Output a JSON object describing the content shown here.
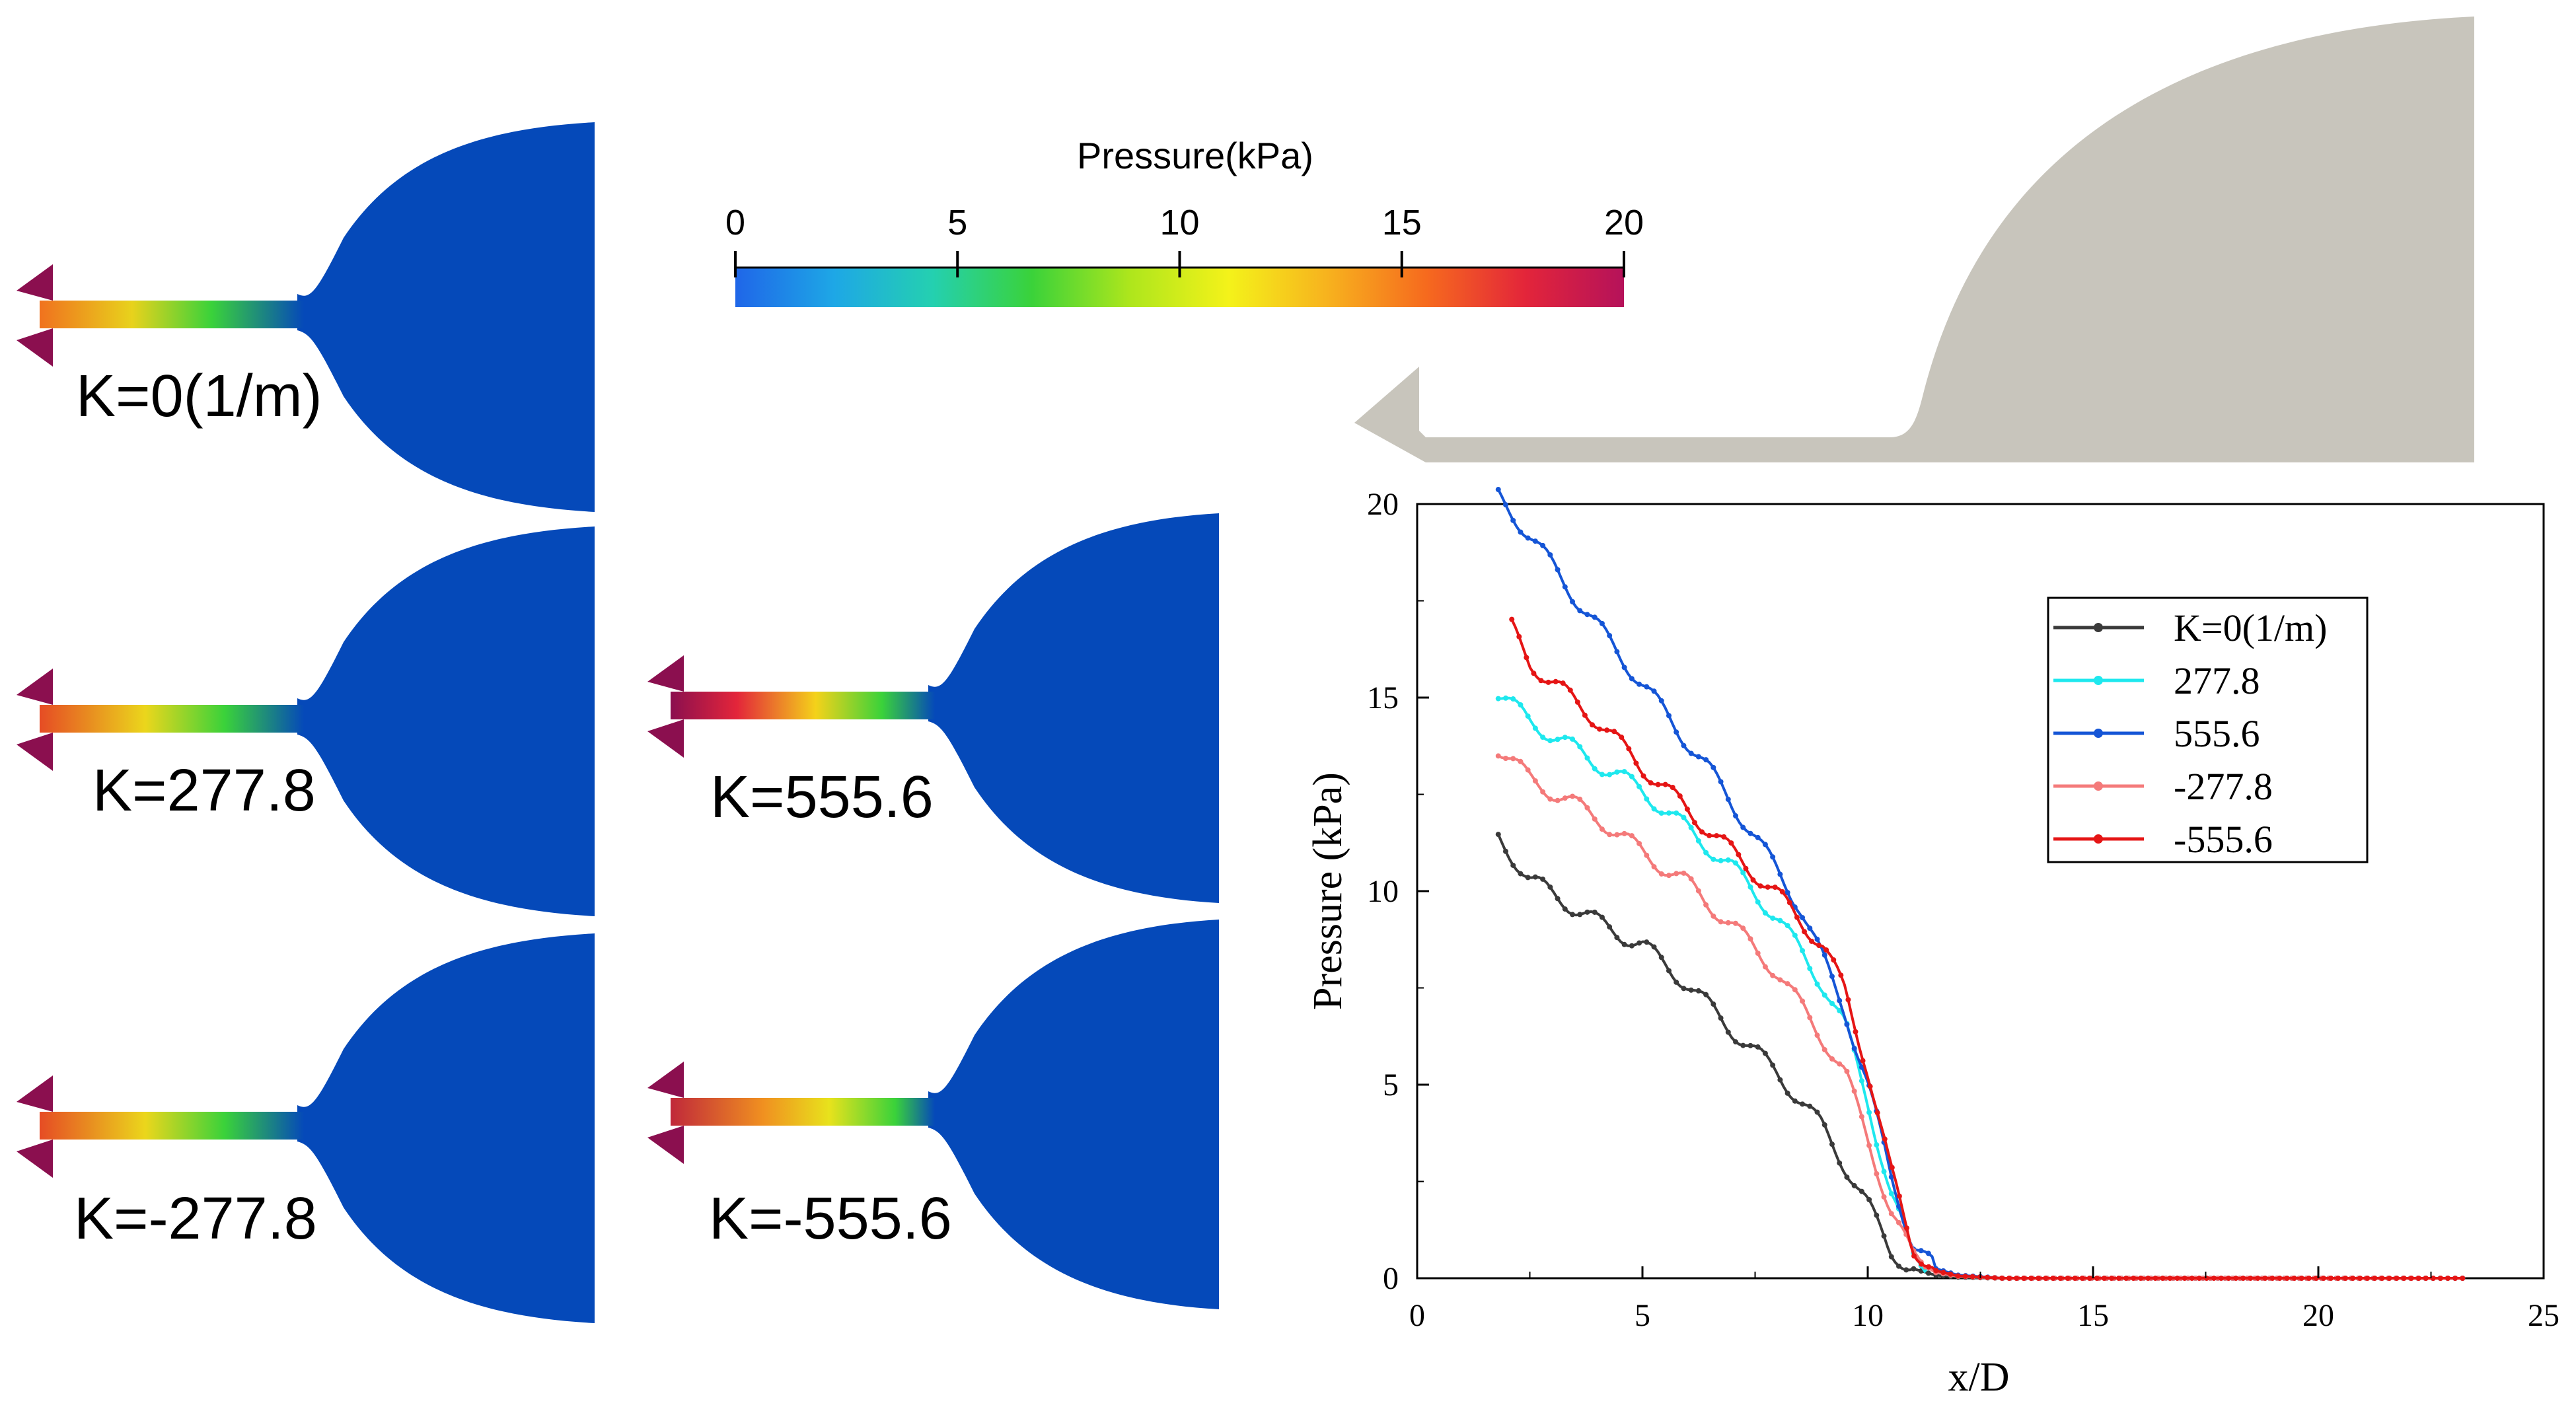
{
  "colorbar": {
    "title": "Pressure(kPa)",
    "ticks": [
      "0",
      "5",
      "10",
      "15",
      "20"
    ],
    "range": [
      0,
      20
    ],
    "colors": [
      "#1f66e8",
      "#1ea7e6",
      "#24d0b0",
      "#3ad23a",
      "#aee61c",
      "#f4f21a",
      "#f7b21e",
      "#f66a1e",
      "#e3253a",
      "#b5125a"
    ]
  },
  "simulations": [
    {
      "label": "K=0(1/m)",
      "K": 0
    },
    {
      "label": "K=277.8",
      "K": 277.8
    },
    {
      "label": "K=555.6",
      "K": 555.6
    },
    {
      "label": "K=-277.8",
      "K": -277.8
    },
    {
      "label": "K=-555.6",
      "K": -555.6
    }
  ],
  "colors": {
    "bulb": "#0549b9",
    "tip": "#8b0f4f",
    "geometry": "#c8c5bc"
  },
  "chart_data": {
    "type": "line",
    "title": "",
    "xlabel": "x/D",
    "ylabel": "Pressure (kPa)",
    "xlim": [
      0,
      25
    ],
    "ylim": [
      0,
      20
    ],
    "xticks": [
      "0",
      "5",
      "10",
      "15",
      "20",
      "25"
    ],
    "yticks": [
      "0",
      "5",
      "10",
      "15",
      "20"
    ],
    "legend_position": "top-right",
    "series": [
      {
        "name": "K=0(1/m)",
        "color": "#3a3a3a",
        "x": [
          1.8,
          2.5,
          4,
          5,
          6,
          7,
          8,
          9,
          10,
          10.5,
          11,
          11.5,
          12,
          13,
          15,
          20,
          23.2
        ],
        "y": [
          11.4,
          10.3,
          9.2,
          8.6,
          7.6,
          6.4,
          5.3,
          3.9,
          1.9,
          0.7,
          0.25,
          0.08,
          0.03,
          0,
          0,
          0,
          0
        ]
      },
      {
        "name": "277.8",
        "color": "#1ee8ee",
        "x": [
          1.8,
          2.5,
          4,
          5,
          6,
          7,
          8,
          9,
          9.5,
          10,
          10.5,
          11,
          11.5,
          12,
          13,
          15,
          20,
          23.2
        ],
        "y": [
          15.1,
          14.4,
          13.3,
          12.6,
          11.6,
          10.6,
          9.3,
          7.6,
          6.5,
          4.6,
          2.2,
          0.6,
          0.15,
          0.05,
          0,
          0,
          0,
          0
        ]
      },
      {
        "name": "555.6",
        "color": "#1555d6",
        "x": [
          1.8,
          2.5,
          3.5,
          4.5,
          5.5,
          6.5,
          7.5,
          8.5,
          9.5,
          10,
          10.5,
          11,
          11.5,
          12,
          13,
          15,
          20,
          23.2
        ],
        "y": [
          20.2,
          19.2,
          17.6,
          16.1,
          14.6,
          13.1,
          11.4,
          9.6,
          6.9,
          5.0,
          2.7,
          0.9,
          0.25,
          0.08,
          0,
          0,
          0,
          0
        ]
      },
      {
        "name": "-277.8",
        "color": "#f47a7a",
        "x": [
          1.8,
          2.5,
          4,
          5,
          6,
          7,
          8,
          9,
          9.5,
          10,
          10.5,
          11,
          11.5,
          12,
          13,
          15,
          20,
          23.2
        ],
        "y": [
          13.7,
          12.9,
          11.9,
          11.0,
          10.2,
          9.1,
          7.9,
          6.2,
          5.3,
          3.6,
          1.8,
          0.55,
          0.15,
          0.05,
          0,
          0,
          0,
          0
        ]
      },
      {
        "name": "-555.6",
        "color": "#e51515",
        "x": [
          2.1,
          2.5,
          4,
          5,
          6,
          7,
          8,
          9,
          9.5,
          10,
          10.5,
          11,
          11.5,
          12,
          13,
          15,
          20,
          23.2
        ],
        "y": [
          16.8,
          15.9,
          14.4,
          13.2,
          12.1,
          11.0,
          9.9,
          8.6,
          7.4,
          5.4,
          2.8,
          0.8,
          0.2,
          0.06,
          0,
          0,
          0,
          0
        ]
      }
    ]
  }
}
